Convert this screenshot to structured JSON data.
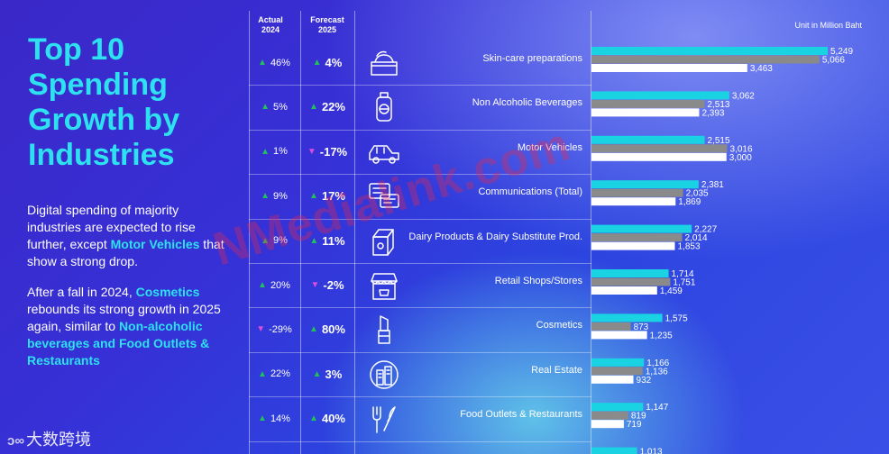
{
  "title": "Top 10 Spending Growth by Industries",
  "description": [
    [
      {
        "t": "Digital spending of majority industries are expected to rise further, except ",
        "hl": false
      },
      {
        "t": "Motor Vehicles",
        "hl": true
      },
      {
        "t": " that show a strong drop.",
        "hl": false
      }
    ],
    [
      {
        "t": "After a fall in 2024, ",
        "hl": false
      },
      {
        "t": "Cosmetics",
        "hl": true
      },
      {
        "t": " rebounds its strong growth in 2025 again, similar to ",
        "hl": false
      },
      {
        "t": "Non-alcoholic beverages and Food Outlets & Restaurants",
        "hl": true
      }
    ]
  ],
  "headers": {
    "actual": "Actual 2024",
    "forecast": "Forecast 2025"
  },
  "unit": "Unit in Million Baht",
  "watermark": "NMedialink.com",
  "logo": "大数跨境",
  "colors": {
    "cyan": "#19d3e3",
    "gray": "#8a8a8a",
    "white": "#ffffff",
    "up": "#21c05a",
    "down": "#d64de0",
    "highlight": "#2ee1f1"
  },
  "chart_data": {
    "type": "bar",
    "orientation": "horizontal",
    "categories": [
      "Skin-care preparations",
      "Non Alcoholic Beverages",
      "Motor Vehicles",
      "Communications (Total)",
      "Dairy Products & Dairy Substitute Prod.",
      "Retail Shops/Stores",
      "Cosmetics",
      "Real Estate",
      "Food Outlets & Restaurants",
      ""
    ],
    "series": [
      {
        "color": "#19d3e3",
        "values": [
          5249,
          3062,
          2515,
          2381,
          2227,
          1714,
          1575,
          1166,
          1147,
          1013
        ]
      },
      {
        "color": "#8a8a8a",
        "values": [
          5066,
          2513,
          3016,
          2035,
          2014,
          1751,
          873,
          1136,
          819,
          null
        ]
      },
      {
        "color": "#ffffff",
        "values": [
          3463,
          2393,
          3000,
          1869,
          1853,
          1459,
          1235,
          932,
          719,
          null
        ]
      }
    ],
    "actual_2024": [
      {
        "dir": "up",
        "value": "46%"
      },
      {
        "dir": "up",
        "value": "5%"
      },
      {
        "dir": "up",
        "value": "1%"
      },
      {
        "dir": "up",
        "value": "9%"
      },
      {
        "dir": "up",
        "value": "9%"
      },
      {
        "dir": "up",
        "value": "20%"
      },
      {
        "dir": "down",
        "value": "-29%"
      },
      {
        "dir": "up",
        "value": "22%"
      },
      {
        "dir": "up",
        "value": "14%"
      }
    ],
    "forecast_2025": [
      {
        "dir": "up",
        "value": "4%"
      },
      {
        "dir": "up",
        "value": "22%"
      },
      {
        "dir": "down",
        "value": "-17%"
      },
      {
        "dir": "up",
        "value": "17%"
      },
      {
        "dir": "up",
        "value": "11%"
      },
      {
        "dir": "down",
        "value": "-2%"
      },
      {
        "dir": "up",
        "value": "80%"
      },
      {
        "dir": "up",
        "value": "3%"
      },
      {
        "dir": "up",
        "value": "40%"
      }
    ],
    "icons": [
      "cream-jar-icon",
      "bottle-icon",
      "car-icon",
      "chat-bubbles-icon",
      "milk-carton-icon",
      "shop-icon",
      "lipstick-icon",
      "building-icon",
      "fork-knife-icon"
    ],
    "xlim": [
      0,
      5600
    ]
  }
}
